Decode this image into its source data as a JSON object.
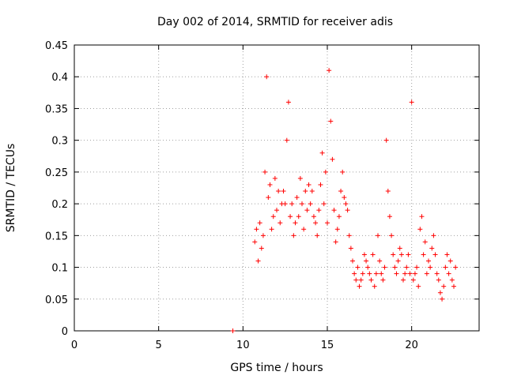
{
  "chart_data": {
    "type": "scatter",
    "title": "Day 002 of 2014, SRMTID for receiver adis",
    "xlabel": "GPS time / hours",
    "ylabel": "SRMTID / TECUs",
    "xlim": [
      0,
      24
    ],
    "ylim": [
      0,
      0.45
    ],
    "x_ticks": [
      "0",
      "5",
      "10",
      "15",
      "20"
    ],
    "y_ticks": [
      "0",
      "0.05",
      "0.1",
      "0.15",
      "0.2",
      "0.25",
      "0.3",
      "0.35",
      "0.4",
      "0.45"
    ],
    "grid": true,
    "marker": "+",
    "color": "#ff0000",
    "series": [
      {
        "x": [
          9.4,
          10.7,
          10.8,
          10.9,
          11.0,
          11.1,
          11.2,
          11.3,
          11.4,
          11.5,
          11.6,
          11.7,
          11.8,
          11.9,
          12.0,
          12.1,
          12.2,
          12.3,
          12.4,
          12.5,
          12.6,
          12.7,
          12.8,
          12.9,
          13.0,
          13.1,
          13.2,
          13.3,
          13.4,
          13.5,
          13.6,
          13.7,
          13.8,
          13.9,
          14.0,
          14.1,
          14.2,
          14.3,
          14.4,
          14.5,
          14.6,
          14.7,
          14.8,
          14.9,
          15.0,
          15.1,
          15.2,
          15.3,
          15.4,
          15.5,
          15.6,
          15.7,
          15.8,
          15.9,
          16.0,
          16.1,
          16.2,
          16.3,
          16.4,
          16.5,
          16.6,
          16.7,
          16.8,
          16.9,
          17.0,
          17.1,
          17.2,
          17.3,
          17.4,
          17.5,
          17.6,
          17.7,
          17.8,
          17.9,
          18.0,
          18.1,
          18.2,
          18.3,
          18.4,
          18.5,
          18.6,
          18.7,
          18.8,
          18.9,
          19.0,
          19.1,
          19.2,
          19.3,
          19.4,
          19.5,
          19.6,
          19.7,
          19.8,
          19.9,
          20.0,
          20.1,
          20.2,
          20.3,
          20.4,
          20.5,
          20.6,
          20.7,
          20.8,
          20.9,
          21.0,
          21.1,
          21.2,
          21.3,
          21.4,
          21.5,
          21.6,
          21.7,
          21.8,
          21.9,
          22.0,
          22.1,
          22.2,
          22.3,
          22.4,
          22.5,
          22.6
        ],
        "y": [
          0,
          0.14,
          0.16,
          0.11,
          0.17,
          0.13,
          0.15,
          0.25,
          0.4,
          0.21,
          0.23,
          0.16,
          0.18,
          0.24,
          0.19,
          0.22,
          0.17,
          0.2,
          0.22,
          0.2,
          0.3,
          0.36,
          0.18,
          0.2,
          0.15,
          0.17,
          0.21,
          0.18,
          0.24,
          0.2,
          0.16,
          0.22,
          0.19,
          0.23,
          0.2,
          0.22,
          0.18,
          0.17,
          0.15,
          0.19,
          0.23,
          0.28,
          0.2,
          0.25,
          0.17,
          0.41,
          0.33,
          0.27,
          0.19,
          0.14,
          0.16,
          0.18,
          0.22,
          0.25,
          0.21,
          0.2,
          0.19,
          0.15,
          0.13,
          0.11,
          0.09,
          0.08,
          0.1,
          0.07,
          0.08,
          0.09,
          0.12,
          0.11,
          0.1,
          0.09,
          0.08,
          0.12,
          0.07,
          0.09,
          0.15,
          0.11,
          0.09,
          0.08,
          0.1,
          0.3,
          0.22,
          0.18,
          0.15,
          0.12,
          0.1,
          0.09,
          0.11,
          0.13,
          0.12,
          0.08,
          0.09,
          0.1,
          0.12,
          0.09,
          0.36,
          0.08,
          0.09,
          0.1,
          0.07,
          0.16,
          0.18,
          0.12,
          0.14,
          0.09,
          0.11,
          0.1,
          0.13,
          0.15,
          0.12,
          0.09,
          0.08,
          0.06,
          0.05,
          0.07,
          0.1,
          0.12,
          0.09,
          0.11,
          0.08,
          0.07,
          0.1
        ]
      }
    ]
  }
}
